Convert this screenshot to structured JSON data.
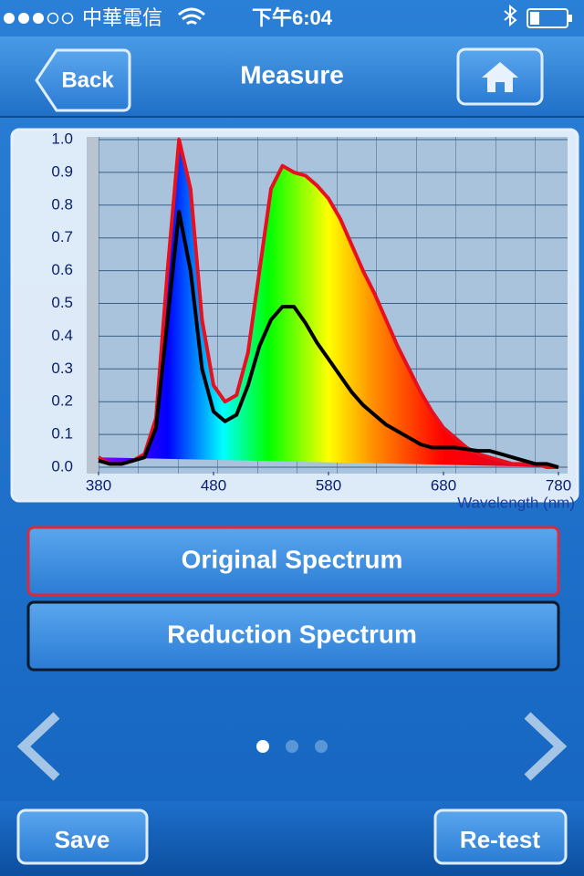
{
  "status_bar": {
    "carrier": "中華電信",
    "time": "下午6:04"
  },
  "nav": {
    "back": "Back",
    "title": "Measure"
  },
  "chart_data": {
    "type": "line",
    "x_label": "Wavelength (nm)",
    "x": [
      380,
      390,
      400,
      410,
      420,
      430,
      440,
      450,
      460,
      470,
      480,
      490,
      500,
      510,
      520,
      530,
      540,
      550,
      560,
      570,
      580,
      590,
      600,
      610,
      620,
      630,
      640,
      650,
      660,
      670,
      680,
      690,
      700,
      710,
      720,
      730,
      740,
      750,
      760,
      770,
      780
    ],
    "series": [
      {
        "name": "Original Spectrum",
        "color": "#e8101e",
        "values": [
          0.03,
          0.01,
          0.01,
          0.02,
          0.04,
          0.15,
          0.6,
          1.0,
          0.85,
          0.45,
          0.25,
          0.2,
          0.22,
          0.35,
          0.6,
          0.85,
          0.92,
          0.9,
          0.89,
          0.86,
          0.82,
          0.76,
          0.68,
          0.6,
          0.53,
          0.45,
          0.37,
          0.3,
          0.23,
          0.17,
          0.12,
          0.09,
          0.06,
          0.04,
          0.03,
          0.02,
          0.01,
          0.01,
          0.01,
          0.0,
          0.0
        ]
      },
      {
        "name": "Reduction Spectrum",
        "color": "#000000",
        "values": [
          0.02,
          0.01,
          0.01,
          0.02,
          0.03,
          0.12,
          0.45,
          0.78,
          0.6,
          0.3,
          0.17,
          0.14,
          0.16,
          0.25,
          0.37,
          0.45,
          0.49,
          0.49,
          0.44,
          0.38,
          0.33,
          0.28,
          0.23,
          0.19,
          0.16,
          0.13,
          0.11,
          0.09,
          0.07,
          0.06,
          0.06,
          0.06,
          0.055,
          0.05,
          0.05,
          0.04,
          0.03,
          0.02,
          0.01,
          0.01,
          0.0
        ]
      }
    ],
    "xlim": [
      380,
      780
    ],
    "xticks": [
      380,
      480,
      580,
      680,
      780
    ],
    "ylim": [
      0,
      1
    ],
    "yticks": [
      {
        "value": 0,
        "label": "0.0"
      },
      0.1,
      0.2,
      0.3,
      0.4,
      0.5,
      0.6,
      0.7,
      0.8,
      0.9,
      {
        "value": 1,
        "label": "1.0"
      }
    ],
    "grid": true
  },
  "toolbar": {
    "save": "Save",
    "retest": "Re-test"
  }
}
